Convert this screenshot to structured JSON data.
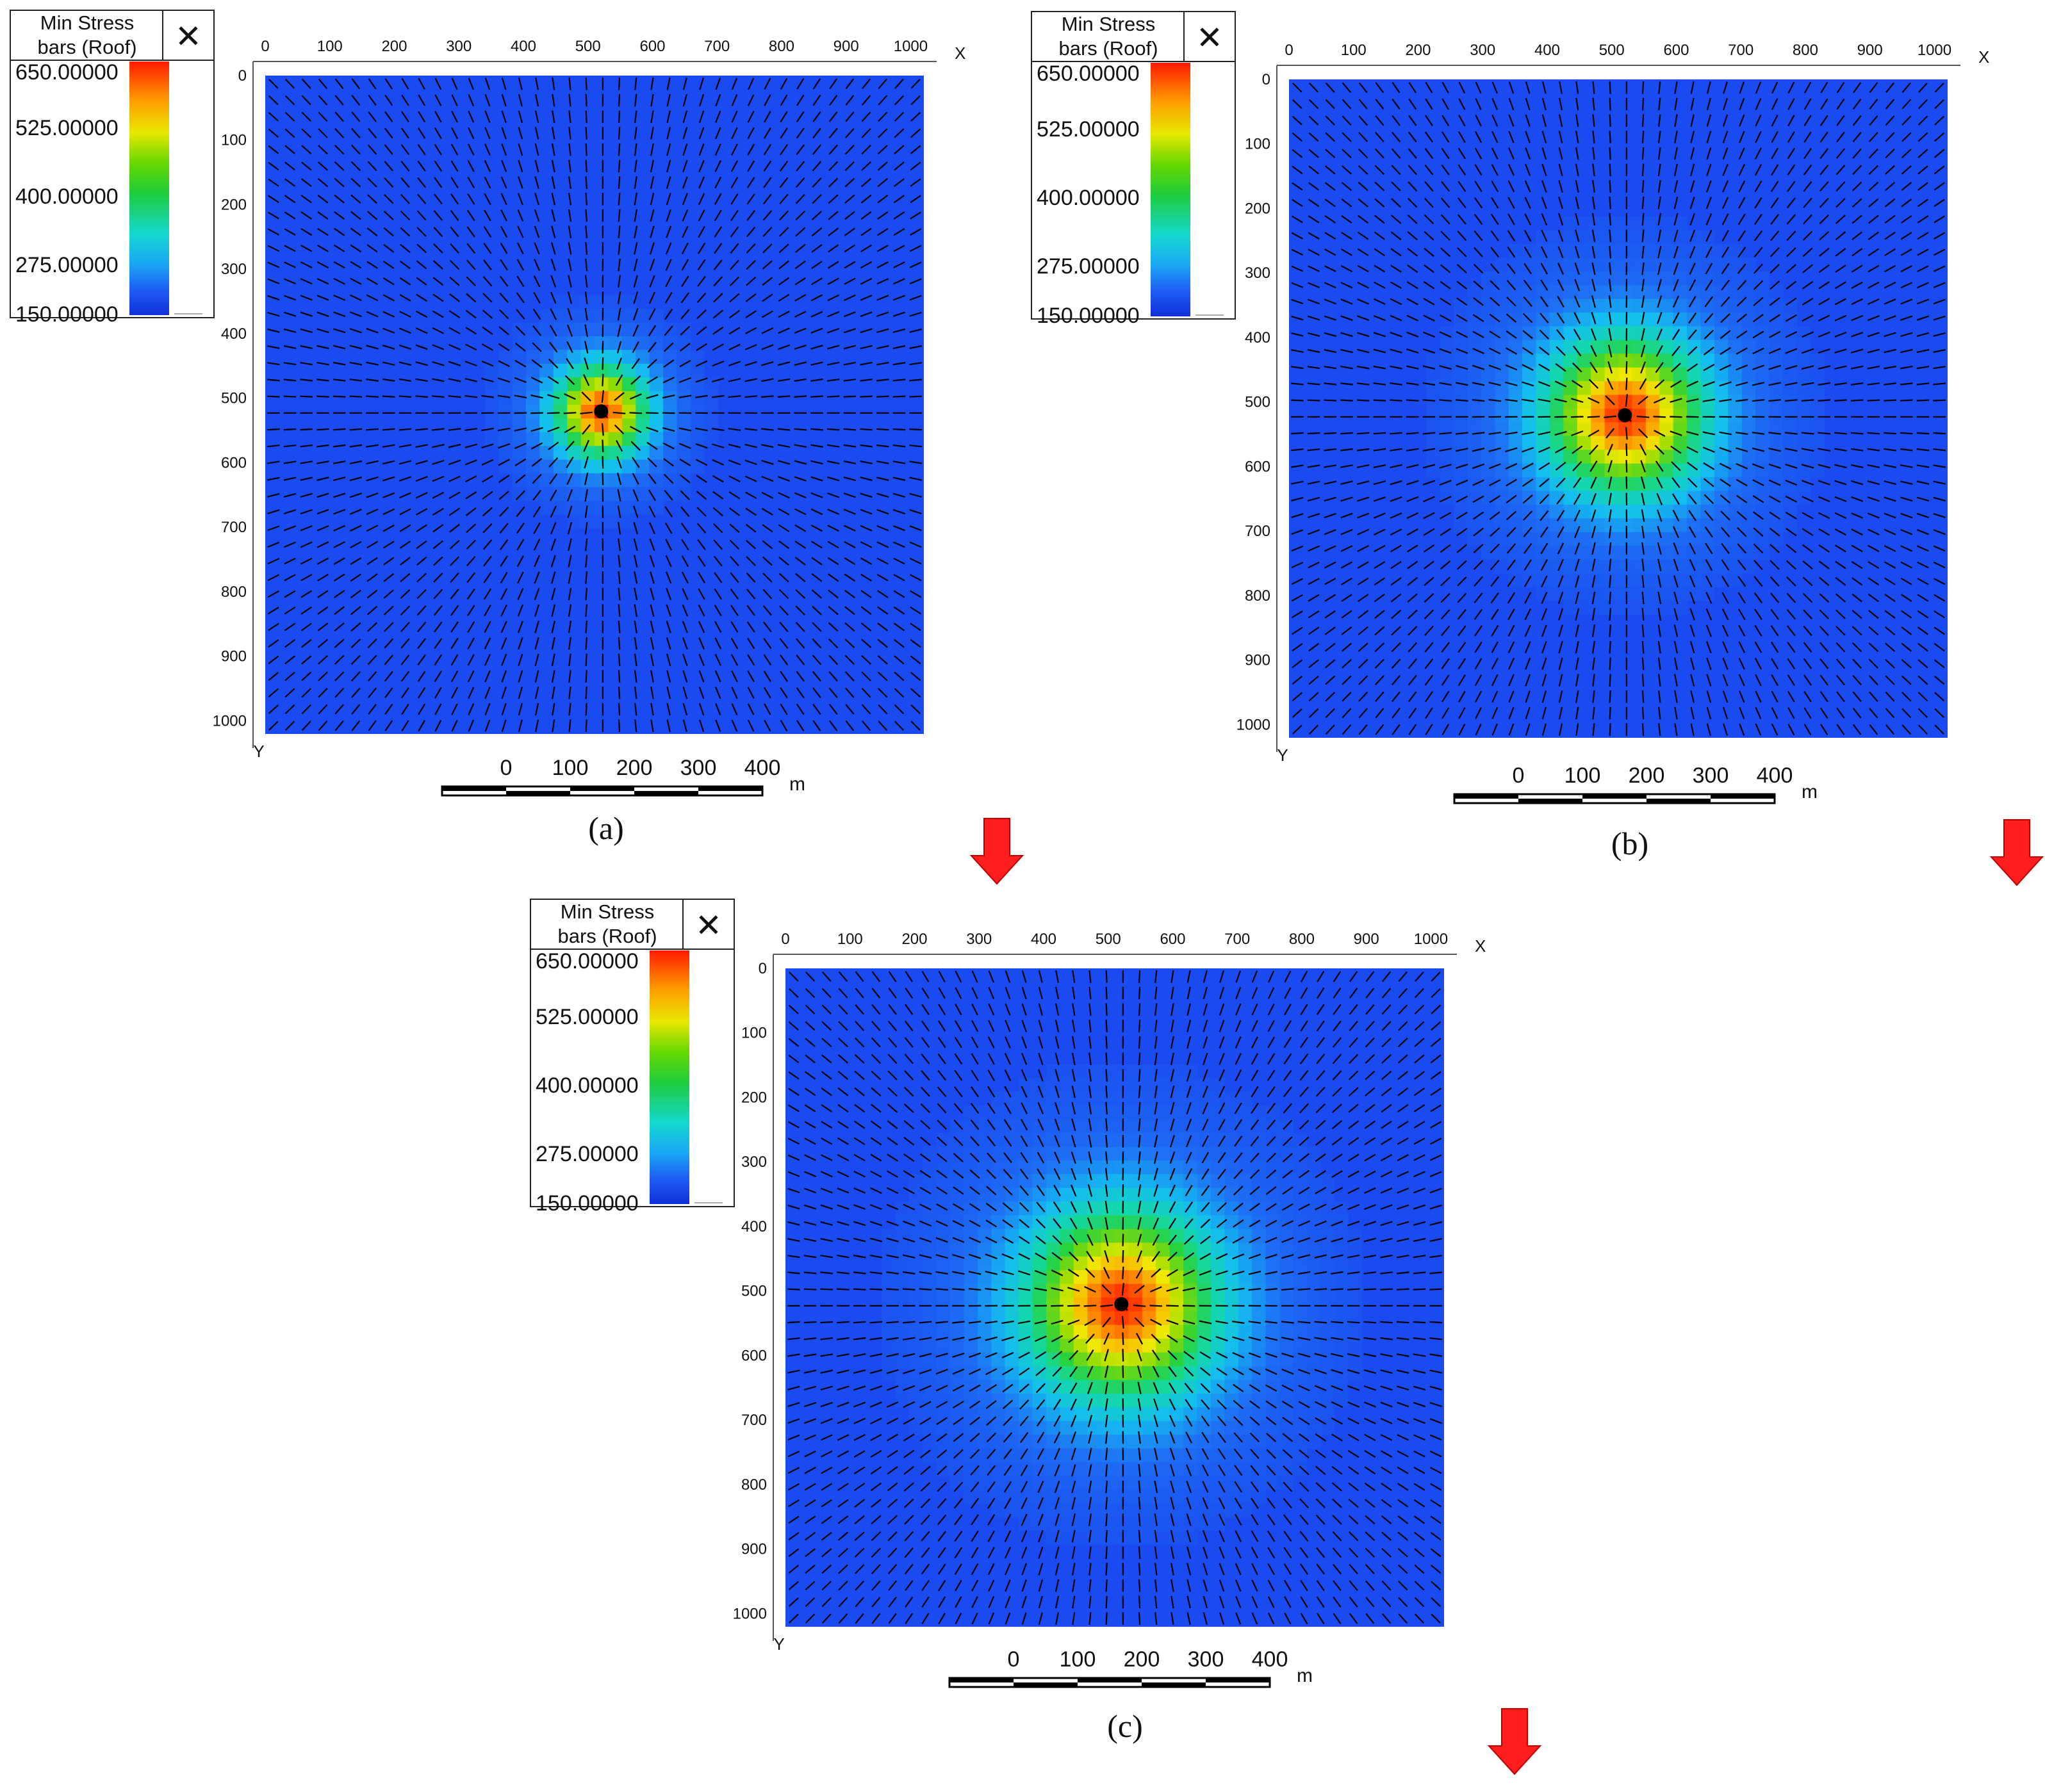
{
  "figure": {
    "panels": [
      {
        "id": "a",
        "caption": "(a)",
        "legend": {
          "title_line1": "Min Stress",
          "title_line2": "bars (Roof)",
          "close_glyph": "✕",
          "labels": [
            "650.00000",
            "525.00000",
            "400.00000",
            "275.00000",
            "150.00000"
          ]
        },
        "x_axis_letter": "X",
        "y_axis_letter": "Y",
        "x_ticks": [
          "0",
          "100",
          "200",
          "300",
          "400",
          "500",
          "600",
          "700",
          "800",
          "900",
          "1000"
        ],
        "y_ticks": [
          "0",
          "100",
          "200",
          "300",
          "400",
          "500",
          "600",
          "700",
          "800",
          "900",
          "1000"
        ],
        "scalebar": {
          "labels": [
            "0",
            "100",
            "200",
            "300",
            "400"
          ],
          "unit": "m"
        }
      },
      {
        "id": "b",
        "caption": "(b)",
        "legend": {
          "title_line1": "Min Stress",
          "title_line2": "bars (Roof)",
          "close_glyph": "✕",
          "labels": [
            "650.00000",
            "525.00000",
            "400.00000",
            "275.00000",
            "150.00000"
          ]
        },
        "x_axis_letter": "X",
        "y_axis_letter": "Y",
        "x_ticks": [
          "0",
          "100",
          "200",
          "300",
          "400",
          "500",
          "600",
          "700",
          "800",
          "900",
          "1000"
        ],
        "y_ticks": [
          "0",
          "100",
          "200",
          "300",
          "400",
          "500",
          "600",
          "700",
          "800",
          "900",
          "1000"
        ],
        "scalebar": {
          "labels": [
            "0",
            "100",
            "200",
            "300",
            "400"
          ],
          "unit": "m"
        }
      },
      {
        "id": "c",
        "caption": "(c)",
        "legend": {
          "title_line1": "Min Stress",
          "title_line2": "bars (Roof)",
          "close_glyph": "✕",
          "labels": [
            "650.00000",
            "525.00000",
            "400.00000",
            "275.00000",
            "150.00000"
          ]
        },
        "x_axis_letter": "X",
        "y_axis_letter": "Y",
        "x_ticks": [
          "0",
          "100",
          "200",
          "300",
          "400",
          "500",
          "600",
          "700",
          "800",
          "900",
          "1000"
        ],
        "y_ticks": [
          "0",
          "100",
          "200",
          "300",
          "400",
          "500",
          "600",
          "700",
          "800",
          "900",
          "1000"
        ],
        "scalebar": {
          "labels": [
            "0",
            "100",
            "200",
            "300",
            "400"
          ],
          "unit": "m"
        }
      }
    ],
    "colors": {
      "background_field": "#1a4bf0",
      "ramp": [
        "#1030d8",
        "#1e5ef5",
        "#14c8f0",
        "#2dd86a",
        "#2ecc2e",
        "#e8e800",
        "#ff9a00",
        "#ff1a00"
      ],
      "arrow": "#ff1e1e",
      "bars": "#000000"
    }
  },
  "chart_data": [
    {
      "panel": "a",
      "type": "heatmap",
      "title": "Min Stress bars (Roof)",
      "x_range": [
        0,
        1000
      ],
      "y_range": [
        0,
        1000
      ],
      "colorbar_range": [
        150,
        650
      ],
      "colorbar_ticks": [
        650,
        525,
        400,
        275,
        150
      ],
      "peak": {
        "x": 510,
        "y": 510,
        "value": 650
      },
      "background_value": 170,
      "influence_radius_m": 110
    },
    {
      "panel": "b",
      "type": "heatmap",
      "title": "Min Stress bars (Roof)",
      "x_range": [
        0,
        1000
      ],
      "y_range": [
        0,
        1000
      ],
      "colorbar_range": [
        150,
        650
      ],
      "colorbar_ticks": [
        650,
        525,
        400,
        275,
        150
      ],
      "peak": {
        "x": 510,
        "y": 510,
        "value": 650
      },
      "background_value": 170,
      "influence_radius_m": 190
    },
    {
      "panel": "c",
      "type": "heatmap",
      "title": "Min Stress bars (Roof)",
      "x_range": [
        0,
        1000
      ],
      "y_range": [
        0,
        1000
      ],
      "colorbar_range": [
        150,
        650
      ],
      "colorbar_ticks": [
        650,
        525,
        400,
        275,
        150
      ],
      "peak": {
        "x": 510,
        "y": 510,
        "value": 650
      },
      "background_value": 170,
      "influence_radius_m": 230
    }
  ]
}
